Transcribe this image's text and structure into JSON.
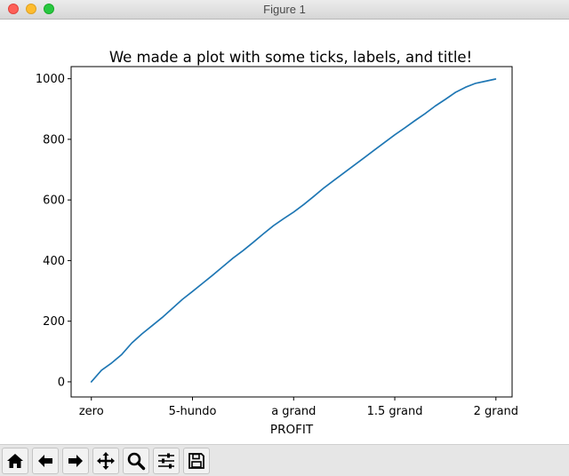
{
  "window": {
    "title": "Figure 1"
  },
  "toolbar": {
    "buttons": [
      "home-icon",
      "back-arrow-icon",
      "forward-arrow-icon",
      "pan-icon",
      "zoom-icon",
      "subplots-config-icon",
      "save-icon"
    ]
  },
  "chart_data": {
    "type": "line",
    "title": "We made a plot with some ticks, labels, and title!",
    "xlabel": "PROFIT",
    "ylabel": "",
    "xlim": [
      -50,
      1040
    ],
    "ylim": [
      -50,
      1040
    ],
    "xticks": [
      0,
      250,
      500,
      750,
      1000
    ],
    "xtick_labels": [
      "zero",
      "5-hundo",
      "a grand",
      "1.5 grand",
      "2 grand"
    ],
    "yticks": [
      0,
      200,
      400,
      600,
      800,
      1000
    ],
    "ytick_labels": [
      "0",
      "200",
      "400",
      "600",
      "800",
      "1000"
    ],
    "grid": false,
    "colors": {
      "line": "#1f77b4"
    },
    "series": [
      {
        "x": [
          0,
          25,
          50,
          75,
          100,
          125,
          150,
          175,
          200,
          225,
          250,
          275,
          300,
          325,
          350,
          375,
          400,
          425,
          450,
          475,
          500,
          525,
          550,
          575,
          600,
          625,
          650,
          675,
          700,
          725,
          750,
          775,
          800,
          825,
          850,
          875,
          900,
          925,
          950,
          975,
          999
        ],
        "values": [
          0,
          38,
          62,
          90,
          128,
          158,
          185,
          212,
          242,
          272,
          298,
          325,
          352,
          380,
          408,
          433,
          460,
          488,
          515,
          538,
          560,
          585,
          612,
          640,
          665,
          690,
          715,
          740,
          765,
          790,
          815,
          838,
          862,
          885,
          910,
          932,
          955,
          972,
          985,
          992,
          999
        ]
      }
    ]
  }
}
